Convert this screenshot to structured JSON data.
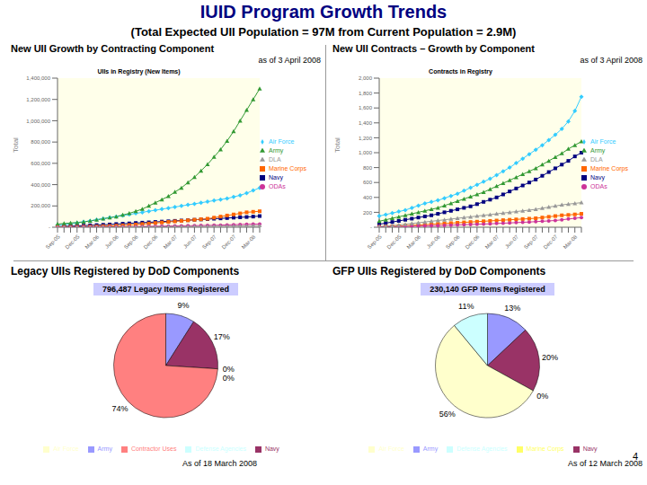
{
  "header": {
    "title": "IUID Program Growth Trends",
    "subtitle": "(Total Expected UII Population = 97M from Current Population = 2.9M)",
    "page_number": 4
  },
  "chart_data": [
    {
      "type": "line",
      "panel_title": "New UII Growth by Contracting Component",
      "date_note": "as of 3 April 2008",
      "title": "UIIs in Registry (New Items)",
      "y_label": "Total",
      "grid": false,
      "legend": "right",
      "categories": [
        "Sep-05",
        null,
        null,
        "Dec-05",
        null,
        null,
        "Mar-06",
        null,
        null,
        "Jun-06",
        null,
        null,
        "Sep-06",
        null,
        null,
        "Dec-06",
        null,
        null,
        "Mar-07",
        null,
        null,
        "Jun-07",
        null,
        null,
        "Sep-07",
        null,
        null,
        "Dec-07",
        null,
        null,
        "Mar-08",
        null
      ],
      "ylim": [
        0,
        1400000
      ],
      "yticks": [
        {
          "value": 0,
          "label": "-"
        },
        {
          "value": 200000,
          "label": "200,000"
        },
        {
          "value": 400000,
          "label": "400,000"
        },
        {
          "value": 600000,
          "label": "600,000"
        },
        {
          "value": 800000,
          "label": "800,000"
        },
        {
          "value": 1000000,
          "label": "1,000,000"
        },
        {
          "value": 1200000,
          "label": "1,200,000"
        },
        {
          "value": 1400000,
          "label": "1,400,000"
        }
      ],
      "series": [
        {
          "name": "Air Force",
          "color": "#33ccff",
          "marker": "diamond",
          "values": [
            20000,
            25000,
            30000,
            40000,
            50000,
            60000,
            70000,
            80000,
            90000,
            100000,
            110000,
            120000,
            130000,
            140000,
            150000,
            160000,
            170000,
            180000,
            190000,
            200000,
            210000,
            220000,
            230000,
            240000,
            250000,
            260000,
            270000,
            285000,
            300000,
            320000,
            345000,
            370000
          ]
        },
        {
          "name": "Navy",
          "color": "#000080",
          "marker": "square",
          "values": [
            5000,
            8000,
            10000,
            12000,
            15000,
            18000,
            20000,
            23000,
            26000,
            30000,
            33000,
            36000,
            40000,
            43000,
            46000,
            50000,
            53000,
            56000,
            60000,
            63000,
            66000,
            70000,
            73000,
            76000,
            80000,
            83000,
            86000,
            90000,
            93000,
            96000,
            100000,
            105000
          ]
        },
        {
          "name": "Army",
          "color": "#339933",
          "marker": "triangle",
          "values": [
            30000,
            35000,
            40000,
            45000,
            50000,
            60000,
            70000,
            80000,
            90000,
            100000,
            115000,
            130000,
            150000,
            170000,
            200000,
            230000,
            260000,
            290000,
            330000,
            370000,
            420000,
            470000,
            530000,
            590000,
            660000,
            730000,
            810000,
            900000,
            1000000,
            1100000,
            1200000,
            1300000
          ]
        },
        {
          "name": "Marine Corps",
          "color": "#ff6600",
          "marker": "square",
          "values": [
            1000,
            2000,
            3000,
            4000,
            5000,
            6000,
            8000,
            10000,
            12000,
            15000,
            18000,
            21000,
            25000,
            30000,
            35000,
            40000,
            45000,
            50000,
            55000,
            60000,
            65000,
            70000,
            75000,
            80000,
            90000,
            100000,
            110000,
            120000,
            130000,
            140000,
            145000,
            150000
          ]
        },
        {
          "name": "ODAs",
          "color": "#cc3399",
          "marker": "circle",
          "values": [
            0,
            0,
            1000,
            1000,
            2000,
            2000,
            3000,
            3000,
            4000,
            4000,
            5000,
            5000,
            6000,
            7000,
            8000,
            9000,
            10000,
            11000,
            12000,
            13000,
            14000,
            15000,
            16000,
            17000,
            18000,
            20000,
            22000,
            24000,
            26000,
            28000,
            29000,
            30000
          ]
        },
        {
          "name": "DLA",
          "color": "#999999",
          "marker": "triangle",
          "values": [
            0,
            0,
            0,
            1000,
            1000,
            1000,
            2000,
            2000,
            2000,
            3000,
            3000,
            3000,
            4000,
            4000,
            5000,
            5000,
            5000,
            6000,
            6000,
            7000,
            7000,
            8000,
            8000,
            9000,
            10000,
            10000,
            11000,
            12000,
            13000,
            13000,
            14000,
            15000
          ]
        }
      ]
    },
    {
      "type": "line",
      "panel_title": "New UII Contracts – Growth by Component",
      "date_note": "as of 3 April 2008",
      "title": "Contracts in Registry",
      "y_label": "Total",
      "grid": false,
      "legend": "right",
      "categories": [
        "Sep-05",
        null,
        null,
        "Dec-05",
        null,
        null,
        "Mar-06",
        null,
        null,
        "Jun-06",
        null,
        null,
        "Sep-06",
        null,
        null,
        "Dec-06",
        null,
        null,
        "Mar-07",
        null,
        null,
        "Jun-07",
        null,
        null,
        "Sep-07",
        null,
        null,
        "Dec-07",
        null,
        null,
        "Mar-08",
        null
      ],
      "ylim": [
        0,
        2000
      ],
      "yticks": [
        {
          "value": 0,
          "label": "-"
        },
        200,
        400,
        600,
        800,
        {
          "value": 1000,
          "label": "1,000"
        },
        {
          "value": 1200,
          "label": "1,200"
        },
        {
          "value": 1400,
          "label": "1,400"
        },
        {
          "value": 1600,
          "label": "1,600"
        },
        {
          "value": 1800,
          "label": "1,800"
        },
        {
          "value": 2000,
          "label": "2,000"
        }
      ],
      "series": [
        {
          "name": "Air Force",
          "color": "#33ccff",
          "marker": "diamond",
          "values": [
            150,
            170,
            190,
            210,
            230,
            260,
            290,
            320,
            340,
            360,
            390,
            420,
            450,
            490,
            530,
            570,
            610,
            650,
            700,
            750,
            800,
            860,
            920,
            980,
            1040,
            1100,
            1170,
            1240,
            1320,
            1420,
            1560,
            1750
          ]
        },
        {
          "name": "Navy",
          "color": "#000080",
          "marker": "square",
          "values": [
            40,
            55,
            70,
            85,
            100,
            115,
            130,
            145,
            160,
            180,
            200,
            220,
            240,
            260,
            280,
            310,
            340,
            370,
            400,
            440,
            480,
            520,
            560,
            600,
            640,
            690,
            740,
            790,
            840,
            890,
            950,
            1000
          ]
        },
        {
          "name": "Army",
          "color": "#339933",
          "marker": "triangle",
          "values": [
            80,
            100,
            120,
            140,
            160,
            180,
            200,
            220,
            240,
            260,
            290,
            320,
            350,
            380,
            410,
            440,
            470,
            510,
            550,
            590,
            630,
            670,
            710,
            750,
            790,
            840,
            890,
            940,
            990,
            1050,
            1100,
            1150
          ]
        },
        {
          "name": "Marine Corps",
          "color": "#ff6600",
          "marker": "square",
          "values": [
            5,
            8,
            10,
            15,
            20,
            25,
            30,
            35,
            40,
            45,
            50,
            55,
            60,
            65,
            70,
            75,
            80,
            85,
            90,
            95,
            100,
            105,
            110,
            115,
            120,
            130,
            140,
            150,
            160,
            165,
            172,
            180
          ]
        },
        {
          "name": "ODAs",
          "color": "#cc3399",
          "marker": "circle",
          "values": [
            5,
            6,
            8,
            10,
            12,
            14,
            16,
            18,
            20,
            22,
            25,
            28,
            31,
            34,
            37,
            40,
            43,
            46,
            50,
            54,
            58,
            62,
            66,
            70,
            75,
            80,
            85,
            90,
            100,
            110,
            120,
            130
          ]
        },
        {
          "name": "DLA",
          "color": "#999999",
          "marker": "triangle",
          "values": [
            10,
            15,
            20,
            30,
            40,
            50,
            60,
            70,
            80,
            90,
            100,
            110,
            120,
            130,
            140,
            150,
            160,
            170,
            180,
            190,
            200,
            210,
            220,
            230,
            240,
            255,
            270,
            285,
            300,
            310,
            320,
            330
          ]
        }
      ]
    },
    {
      "type": "pie",
      "panel_title": "Legacy UIIs Registered by DoD Components",
      "annotation": "796,487 Legacy Items Registered",
      "date_note": "As of 18 March 2008",
      "legend": "bottom",
      "categories": [
        "Army",
        "Navy",
        "Air Force",
        "Defense Agencies",
        "Contractor Uses"
      ],
      "values": [
        9,
        17,
        0,
        0,
        74
      ],
      "value_labels": [
        "9%",
        "17%",
        "0%",
        "0%",
        "74%"
      ],
      "colors": [
        "#9999ff",
        "#993366",
        "#ffffcc",
        "#ccffff",
        "#ff8080"
      ]
    },
    {
      "type": "pie",
      "panel_title": "GFP UIIs Registered by DoD Components",
      "annotation": "230,140 GFP Items Registered",
      "date_note": "As of 12 March 2008",
      "legend": "bottom",
      "categories": [
        "Army",
        "Navy",
        "Marine Corps",
        "Air Force",
        "Defense Agencies"
      ],
      "values": [
        13,
        20,
        0,
        56,
        11
      ],
      "value_labels": [
        "13%",
        "20%",
        "0%",
        "56%",
        "11%"
      ],
      "colors": [
        "#9999ff",
        "#993366",
        "#ffff66",
        "#ffffcc",
        "#ccffff"
      ]
    }
  ]
}
